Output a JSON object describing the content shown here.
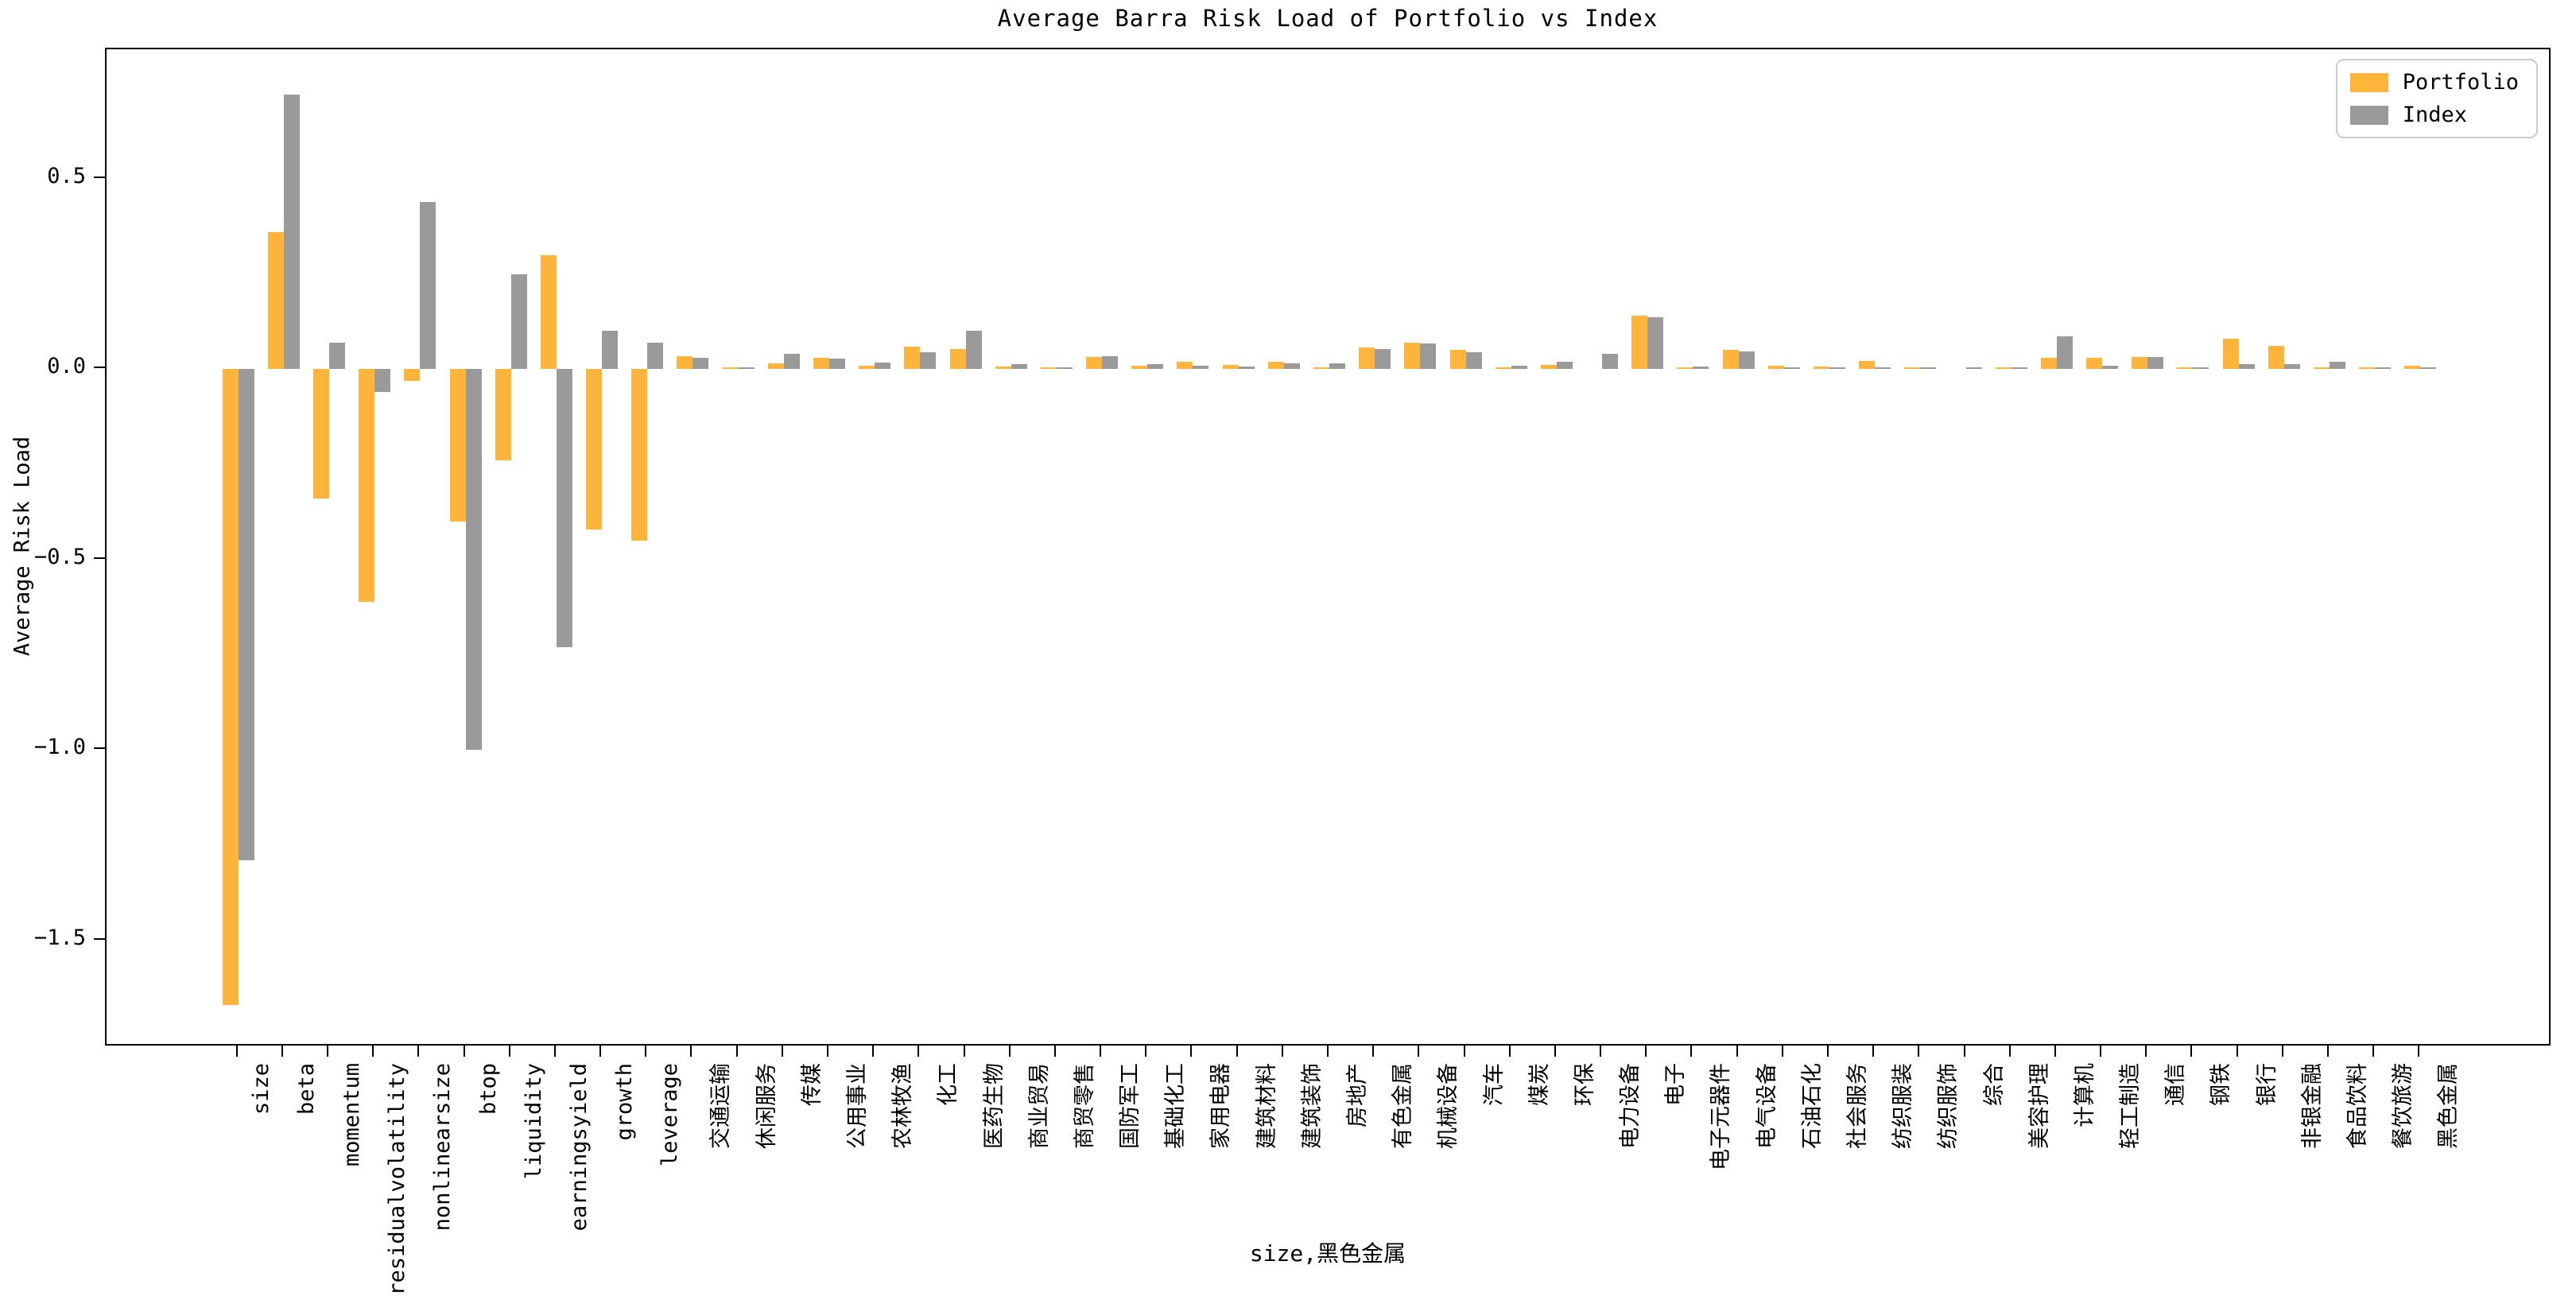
{
  "title": "Average Barra Risk Load of Portfolio vs Index",
  "ylabel": "Average Risk Load",
  "xlabel": "size,黑色金属",
  "legend": {
    "portfolio_label": "Portfolio",
    "index_label": "Index"
  },
  "colors": {
    "portfolio": "#FFB43C",
    "index": "#9A9A9A",
    "legend_border": "#CCCCCC",
    "axis": "#000000"
  },
  "chart_data": {
    "type": "bar",
    "title": "Average Barra Risk Load of Portfolio vs Index",
    "xlabel": "size,黑色金属",
    "ylabel": "Average Risk Load",
    "grid": false,
    "legend_position": "upper right",
    "ylim": [
      -1.78,
      0.84
    ],
    "yticks": [
      0.5,
      0.0,
      -0.5,
      -1.0,
      -1.5
    ],
    "ytick_labels": [
      "0.5",
      "0.0",
      "−0.5",
      "−1.0",
      "−1.5"
    ],
    "categories": [
      "size",
      "beta",
      "momentum",
      "residualvolatility",
      "nonlinearsize",
      "btop",
      "liquidity",
      "earningsyield",
      "growth",
      "leverage",
      "交通运输",
      "休闲服务",
      "传媒",
      "公用事业",
      "农林牧渔",
      "化工",
      "医药生物",
      "商业贸易",
      "商贸零售",
      "国防军工",
      "基础化工",
      "家用电器",
      "建筑材料",
      "建筑装饰",
      "房地产",
      "有色金属",
      "机械设备",
      "汽车",
      "煤炭",
      "环保",
      "电力设备",
      "电子",
      "电子元器件",
      "电气设备",
      "石油石化",
      "社会服务",
      "纺织服装",
      "纺织服饰",
      "综合",
      "美容护理",
      "计算机",
      "轻工制造",
      "通信",
      "钢铁",
      "银行",
      "非银金融",
      "食品饮料",
      "餐饮旅游",
      "黑色金属"
    ],
    "series": [
      {
        "name": "Portfolio",
        "color": "#FFB43C",
        "values": [
          -1.67,
          0.36,
          -0.34,
          -0.61,
          -0.03,
          -0.4,
          -0.24,
          0.3,
          -0.42,
          -0.45,
          0.034,
          0.002,
          0.015,
          0.03,
          0.01,
          0.06,
          0.054,
          0.008,
          0.002,
          0.033,
          0.01,
          0.019,
          0.011,
          0.02,
          0.003,
          0.057,
          0.07,
          0.051,
          0.005,
          0.011,
          0.0,
          0.14,
          0.003,
          0.05,
          0.009,
          0.008,
          0.022,
          0.004,
          0.0,
          0.001,
          0.029,
          0.03,
          0.033,
          0.004,
          0.081,
          0.062,
          0.005,
          0.002,
          0.01
        ]
      },
      {
        "name": "Index",
        "color": "#9A9A9A",
        "values": [
          -1.29,
          0.72,
          0.07,
          -0.06,
          0.44,
          -1.0,
          0.25,
          -0.73,
          0.1,
          0.07,
          0.029,
          0.001,
          0.04,
          0.027,
          0.017,
          0.044,
          0.102,
          0.013,
          0.004,
          0.034,
          0.013,
          0.01,
          0.006,
          0.015,
          0.016,
          0.053,
          0.067,
          0.044,
          0.009,
          0.019,
          0.041,
          0.136,
          0.008,
          0.047,
          0.004,
          0.005,
          0.005,
          0.002,
          0.001,
          0.005,
          0.086,
          0.01,
          0.033,
          0.003,
          0.013,
          0.014,
          0.02,
          0.002,
          0.004
        ]
      }
    ]
  }
}
